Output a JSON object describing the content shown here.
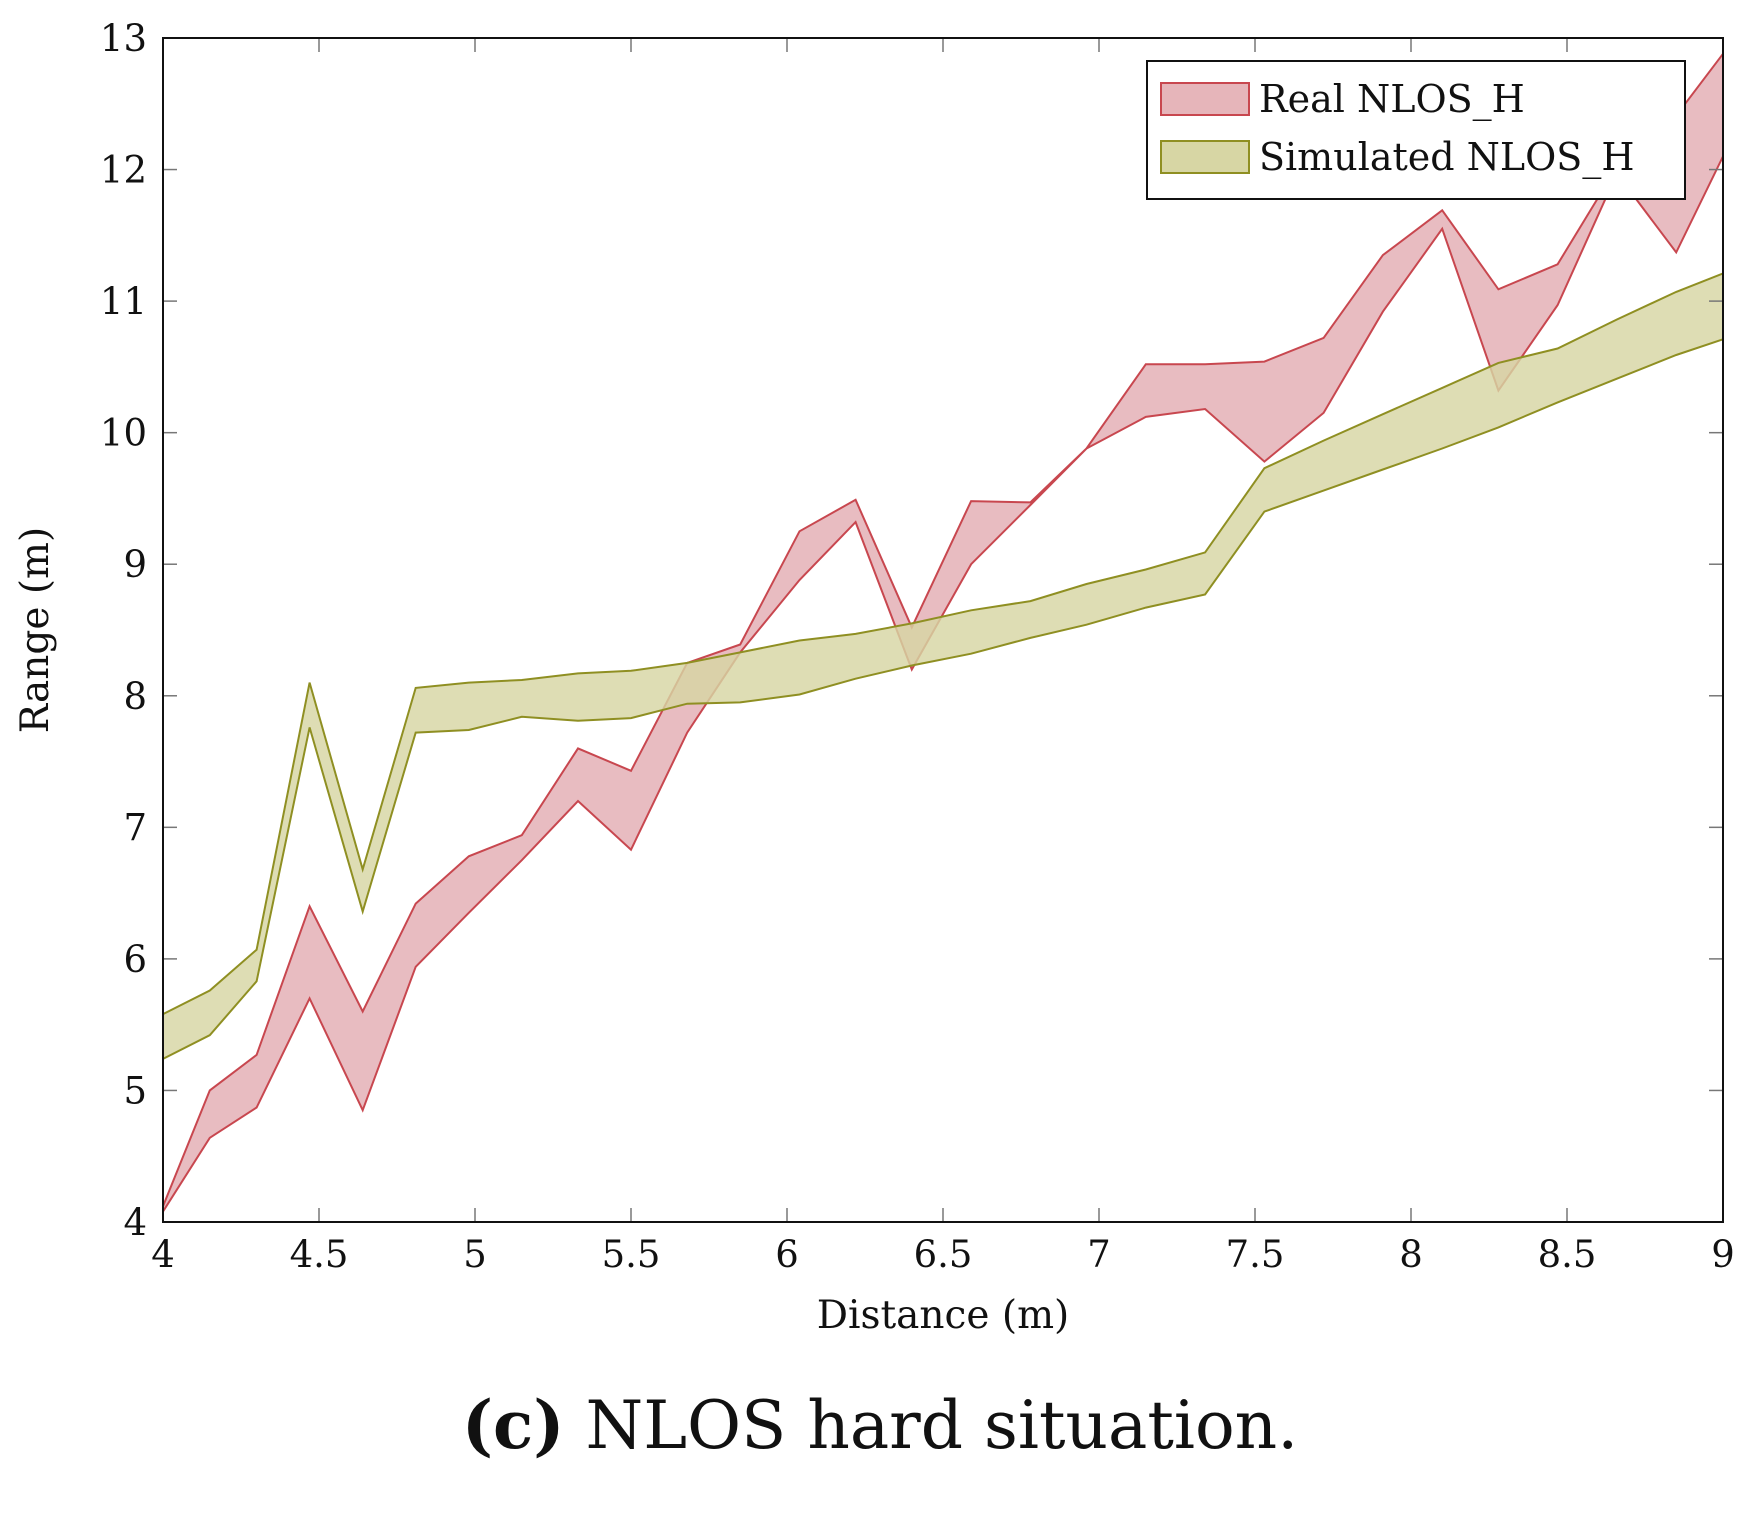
{
  "chart_data": {
    "type": "area",
    "title": "",
    "xlabel": "Distance (m)",
    "ylabel": "Range (m)",
    "xlim": [
      4,
      9
    ],
    "ylim": [
      4,
      13
    ],
    "xticks": [
      "4",
      "4.5",
      "5",
      "5.5",
      "6",
      "6.5",
      "7",
      "7.5",
      "8",
      "8.5",
      "9"
    ],
    "yticks": [
      "4",
      "5",
      "6",
      "7",
      "8",
      "9",
      "10",
      "11",
      "12",
      "13"
    ],
    "legend_position": "top-right",
    "series": [
      {
        "name": "Real NLOS_H",
        "color": "#c8474f",
        "fill": "#e6b5ba",
        "x": [
          4.0,
          4.15,
          4.3,
          4.47,
          4.64,
          4.81,
          4.98,
          5.15,
          5.33,
          5.5,
          5.68,
          5.85,
          6.04,
          6.22,
          6.4,
          6.59,
          6.78,
          6.96,
          7.15,
          7.34,
          7.53,
          7.72,
          7.91,
          8.1,
          8.28,
          8.47,
          8.66,
          8.85,
          9.0
        ],
        "upper": [
          4.12,
          5.0,
          5.27,
          6.4,
          5.6,
          6.42,
          6.78,
          6.94,
          7.6,
          7.43,
          8.25,
          8.39,
          9.25,
          9.49,
          8.52,
          9.48,
          9.47,
          9.88,
          10.52,
          10.52,
          10.54,
          10.72,
          11.35,
          11.69,
          11.09,
          11.28,
          12.02,
          12.41,
          12.88
        ],
        "lower": [
          4.08,
          4.64,
          4.87,
          5.7,
          4.85,
          5.94,
          6.35,
          6.75,
          7.2,
          6.83,
          7.72,
          8.33,
          8.88,
          9.32,
          8.2,
          9.0,
          9.45,
          9.88,
          10.12,
          10.18,
          9.78,
          10.15,
          10.92,
          11.55,
          10.32,
          10.97,
          11.97,
          11.37,
          12.1
        ]
      },
      {
        "name": "Simulated NLOS_H",
        "color": "#8f8f22",
        "fill": "#d7d6a4",
        "x": [
          4.0,
          4.15,
          4.3,
          4.47,
          4.64,
          4.81,
          4.98,
          5.15,
          5.33,
          5.5,
          5.68,
          5.85,
          6.04,
          6.22,
          6.4,
          6.59,
          6.78,
          6.96,
          7.15,
          7.34,
          7.53,
          7.72,
          7.91,
          8.1,
          8.28,
          8.47,
          8.66,
          8.85,
          9.0
        ],
        "upper": [
          5.58,
          5.76,
          6.07,
          8.1,
          6.68,
          8.06,
          8.1,
          8.12,
          8.17,
          8.19,
          8.25,
          8.33,
          8.42,
          8.47,
          8.55,
          8.65,
          8.72,
          8.85,
          8.96,
          9.09,
          9.73,
          9.94,
          10.14,
          10.34,
          10.53,
          10.64,
          10.86,
          11.07,
          11.21
        ],
        "lower": [
          5.24,
          5.42,
          5.83,
          7.76,
          6.36,
          7.72,
          7.74,
          7.84,
          7.81,
          7.83,
          7.94,
          7.95,
          8.01,
          8.13,
          8.23,
          8.32,
          8.44,
          8.54,
          8.67,
          8.77,
          9.4,
          9.56,
          9.72,
          9.88,
          10.04,
          10.23,
          10.41,
          10.59,
          10.71
        ]
      }
    ]
  },
  "caption": {
    "label": "(c)",
    "text": " NLOS hard situation."
  }
}
